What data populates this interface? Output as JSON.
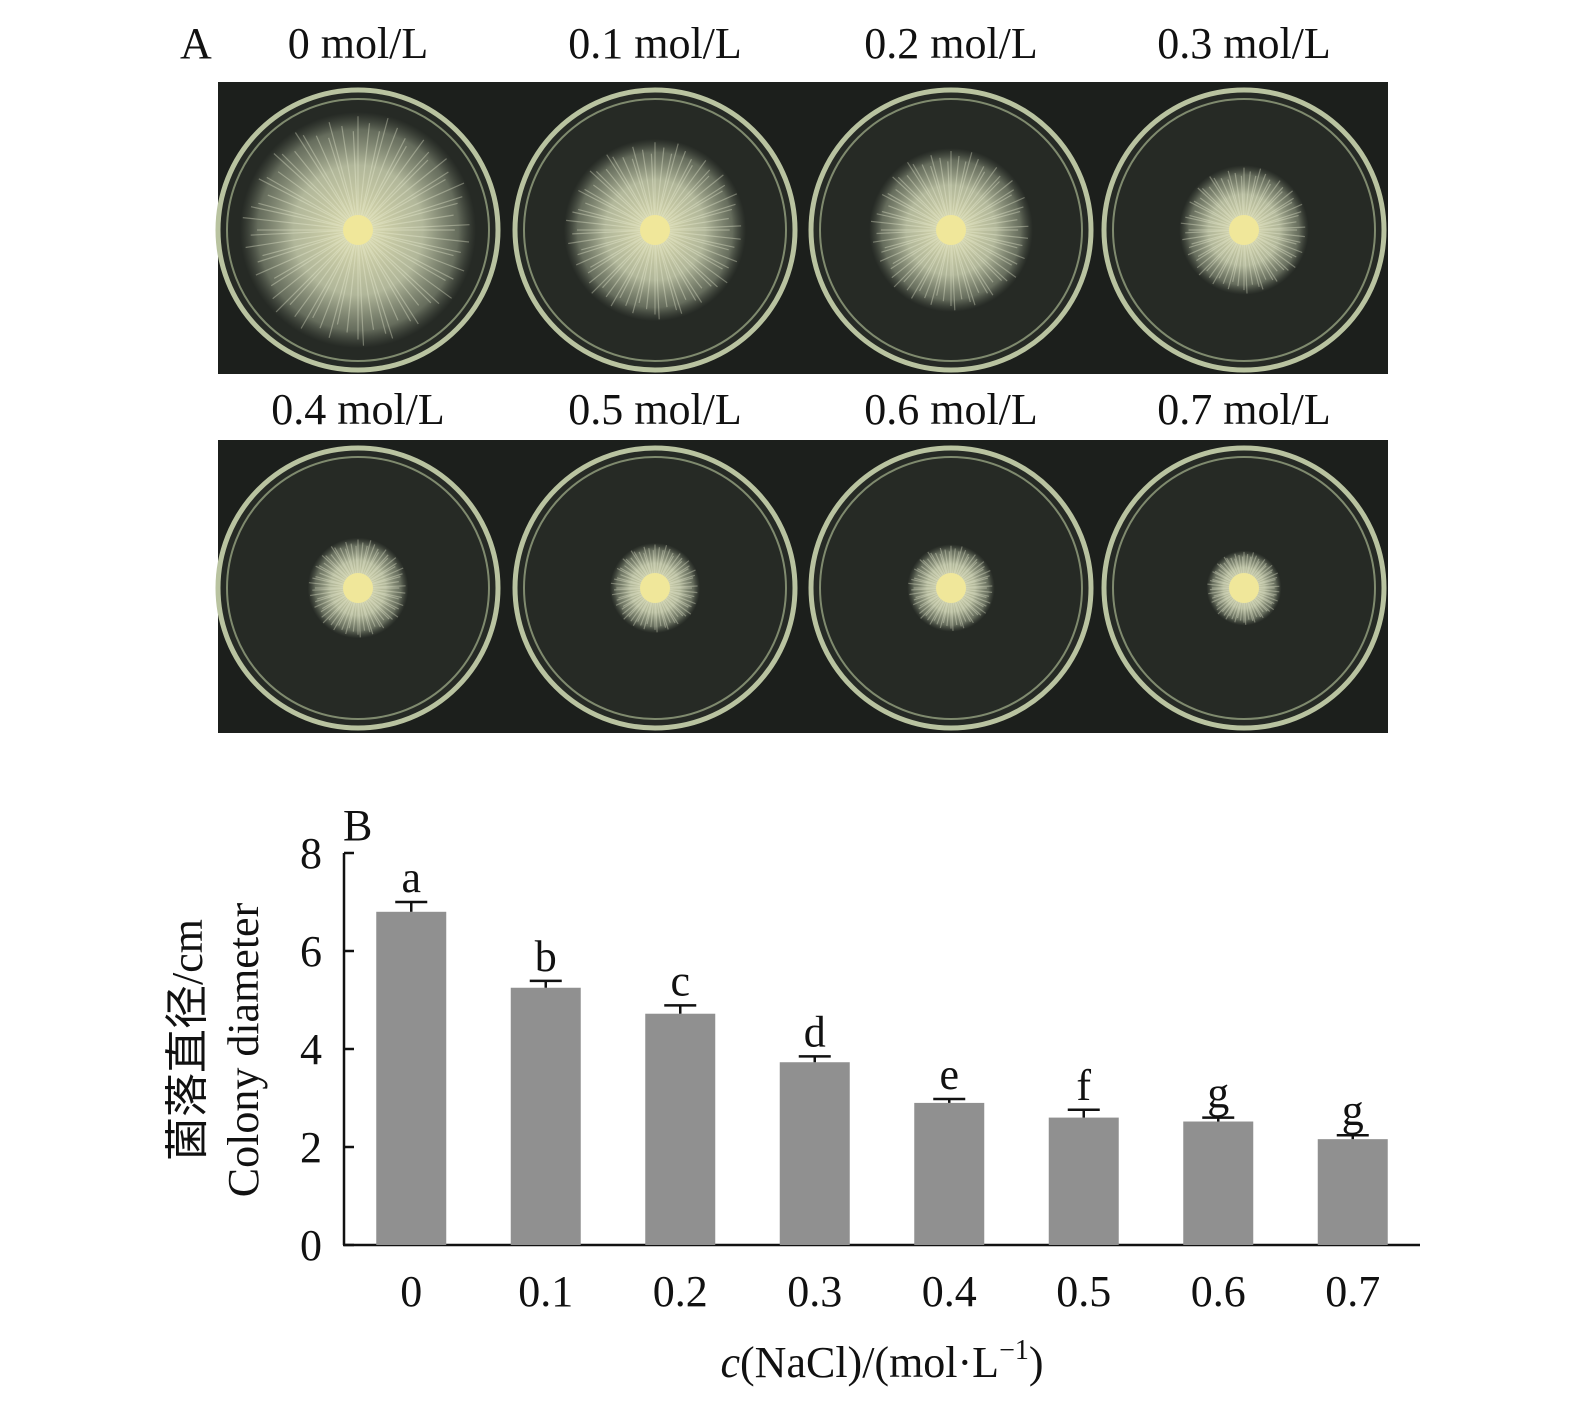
{
  "panel_a": {
    "letter": "A",
    "plate_labels": [
      "0 mol/L",
      "0.1 mol/L",
      "0.2 mol/L",
      "0.3 mol/L",
      "0.4 mol/L",
      "0.5 mol/L",
      "0.6 mol/L",
      "0.7 mol/L"
    ],
    "colony_diameter_cm": [
      6.8,
      5.25,
      4.72,
      3.73,
      2.9,
      2.6,
      2.52,
      2.16
    ],
    "colors": {
      "background": "#1c1f1c",
      "plate_rim": "#b9c3a0",
      "colony": "#dfe3c3",
      "colony_center": "#f0e79a"
    }
  },
  "chart_data": {
    "type": "bar",
    "panel_letter": "B",
    "categories": [
      "0",
      "0.1",
      "0.2",
      "0.3",
      "0.4",
      "0.5",
      "0.6",
      "0.7"
    ],
    "values": [
      6.8,
      5.25,
      4.72,
      3.73,
      2.9,
      2.6,
      2.52,
      2.16
    ],
    "errors": [
      0.2,
      0.14,
      0.17,
      0.12,
      0.08,
      0.16,
      0.08,
      0.08
    ],
    "significance_letters": [
      "a",
      "b",
      "c",
      "d",
      "e",
      "f",
      "g",
      "g"
    ],
    "ylim": [
      0,
      8
    ],
    "yticks": [
      "0",
      "2",
      "4",
      "6",
      "8"
    ],
    "ylabel_cn": "菌落直径/cm",
    "ylabel_en": "Colony diameter",
    "xlabel_italic": "c",
    "xlabel_rest": "(NaCl)/(mol·L",
    "xlabel_sup": "−1",
    "xlabel_close": ")",
    "bar_color": "#909090",
    "grid": false,
    "legend": "none"
  }
}
